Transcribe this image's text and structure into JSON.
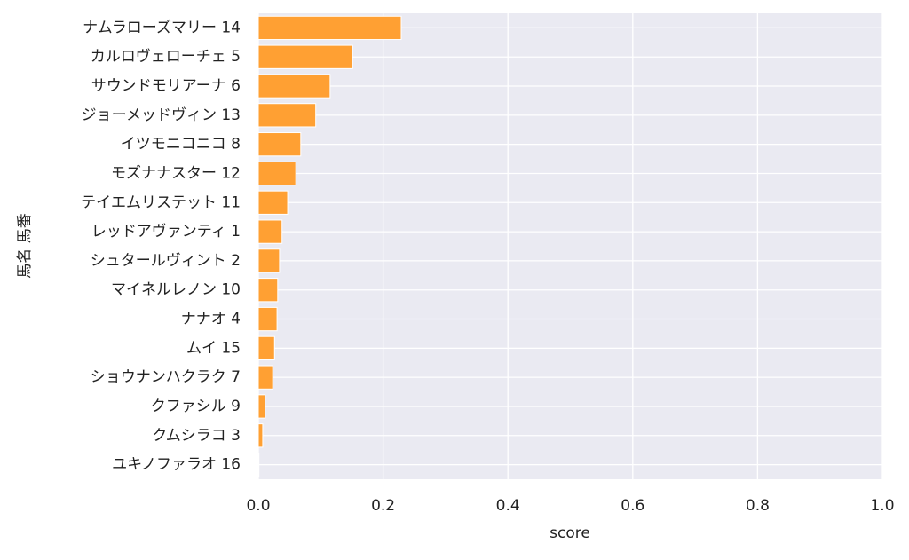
{
  "chart_data": {
    "type": "barh",
    "ylabel": "馬名 馬番",
    "xlabel": "score",
    "categories": [
      "ナムラローズマリー 14",
      "カルロヴェローチェ 5",
      "サウンドモリアーナ 6",
      "ジョーメッドヴィン 13",
      "イツモニコニコ 8",
      "モズナナスター 12",
      "テイエムリステット 11",
      "レッドアヴァンティ 1",
      "シュタールヴィント 2",
      "マイネルレノン 10",
      "ナナオ 4",
      "ムイ 15",
      "ショウナンハクラク 7",
      "クファシル 9",
      "クムシラコ 3",
      "ユキノファラオ 16"
    ],
    "values": [
      0.229,
      0.151,
      0.115,
      0.092,
      0.068,
      0.06,
      0.047,
      0.038,
      0.034,
      0.031,
      0.03,
      0.026,
      0.023,
      0.011,
      0.007,
      0.001
    ],
    "color": "#ffa033",
    "xlim": [
      0,
      1.0
    ],
    "xticks": [
      {
        "value": 0,
        "label": "0.0"
      },
      0.2,
      0.4,
      0.6,
      0.8,
      {
        "value": 1.0,
        "label": "1.0"
      }
    ],
    "grid": true
  }
}
